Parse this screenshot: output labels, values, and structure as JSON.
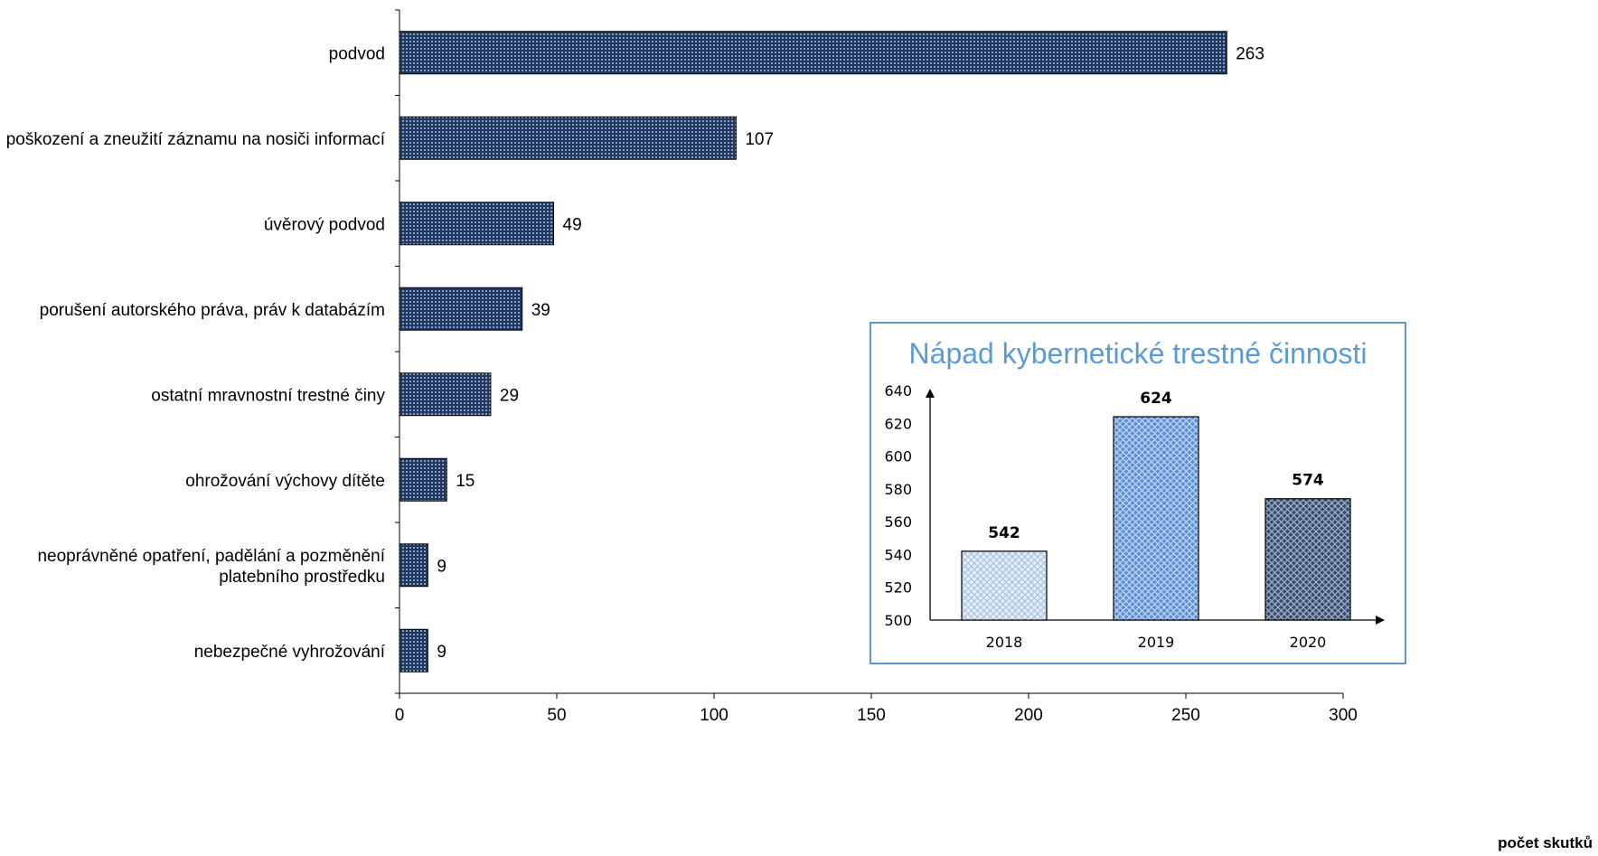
{
  "chart_data": [
    {
      "type": "bar",
      "orientation": "horizontal",
      "categories": [
        "podvod",
        "poškození a zneužití záznamu na nosiči informací",
        "úvěrový podvod",
        "porušení autorského práva, práv k databázím",
        "ostatní mravnostní trestné činy",
        "ohrožování výchovy dítěte",
        "neoprávněné opatření, padělání a pozměnění platebního prostředku",
        "nebezpečné vyhrožování"
      ],
      "category_lines": [
        [
          "podvod"
        ],
        [
          "poškození a zneužití záznamu na nosiči informací"
        ],
        [
          "úvěrový podvod"
        ],
        [
          "porušení autorského práva, práv k databázím"
        ],
        [
          "ostatní mravnostní trestné činy"
        ],
        [
          "ohrožování výchovy dítěte"
        ],
        [
          "neoprávněné opatření, padělání a pozměnění",
          "platebního prostředku"
        ],
        [
          "nebezpečné vyhrožování"
        ]
      ],
      "values": [
        263,
        107,
        49,
        39,
        29,
        15,
        9,
        9
      ],
      "xlabel": "počet skutků",
      "xlim": [
        0,
        300
      ],
      "xticks": [
        0,
        50,
        100,
        150,
        200,
        250,
        300
      ],
      "bar_color": "#1f3864",
      "data_labels": true,
      "grid": false
    },
    {
      "type": "bar",
      "title": "Nápad kybernetické trestné činnosti",
      "categories": [
        "2018",
        "2019",
        "2020"
      ],
      "values": [
        542,
        624,
        574
      ],
      "ylim": [
        500,
        640
      ],
      "yticks": [
        500,
        520,
        540,
        560,
        580,
        600,
        620,
        640
      ],
      "bar_colors": [
        "#dbe6f4",
        "#6f9ad9",
        "#44546a"
      ],
      "frame_color": "#2e75b6",
      "data_labels": true,
      "grid": false
    }
  ]
}
